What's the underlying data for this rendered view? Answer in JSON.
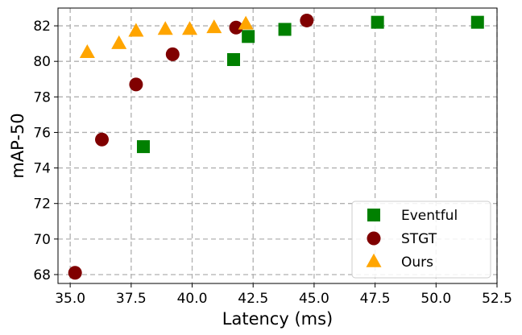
{
  "chart_data": {
    "type": "scatter",
    "title": "",
    "xlabel": "Latency (ms)",
    "ylabel": "mAP-50",
    "xlim": [
      34.5,
      52.5
    ],
    "ylim": [
      67.5,
      83.0
    ],
    "xticks": [
      "35.0",
      "37.5",
      "40.0",
      "42.5",
      "45.0",
      "47.5",
      "50.0",
      "52.5"
    ],
    "yticks": [
      "68",
      "70",
      "72",
      "74",
      "76",
      "78",
      "80",
      "82"
    ],
    "grid": true,
    "legend_position": "lower-right",
    "series": [
      {
        "name": "Eventful",
        "marker": "square",
        "color": "#008000",
        "x": [
          38.0,
          41.7,
          42.3,
          43.8,
          47.6,
          51.7
        ],
        "y": [
          75.2,
          80.1,
          81.4,
          81.8,
          82.2,
          82.2
        ]
      },
      {
        "name": "STGT",
        "marker": "circle",
        "color": "#800000",
        "x": [
          35.2,
          36.3,
          37.7,
          39.2,
          41.8,
          44.7
        ],
        "y": [
          68.1,
          75.6,
          78.7,
          80.4,
          81.9,
          82.3
        ]
      },
      {
        "name": "Ours",
        "marker": "triangle",
        "color": "#FFA500",
        "x": [
          35.7,
          37.0,
          37.7,
          38.9,
          39.9,
          40.9,
          42.2
        ],
        "y": [
          80.5,
          81.0,
          81.7,
          81.8,
          81.8,
          81.9,
          82.1
        ]
      }
    ]
  }
}
